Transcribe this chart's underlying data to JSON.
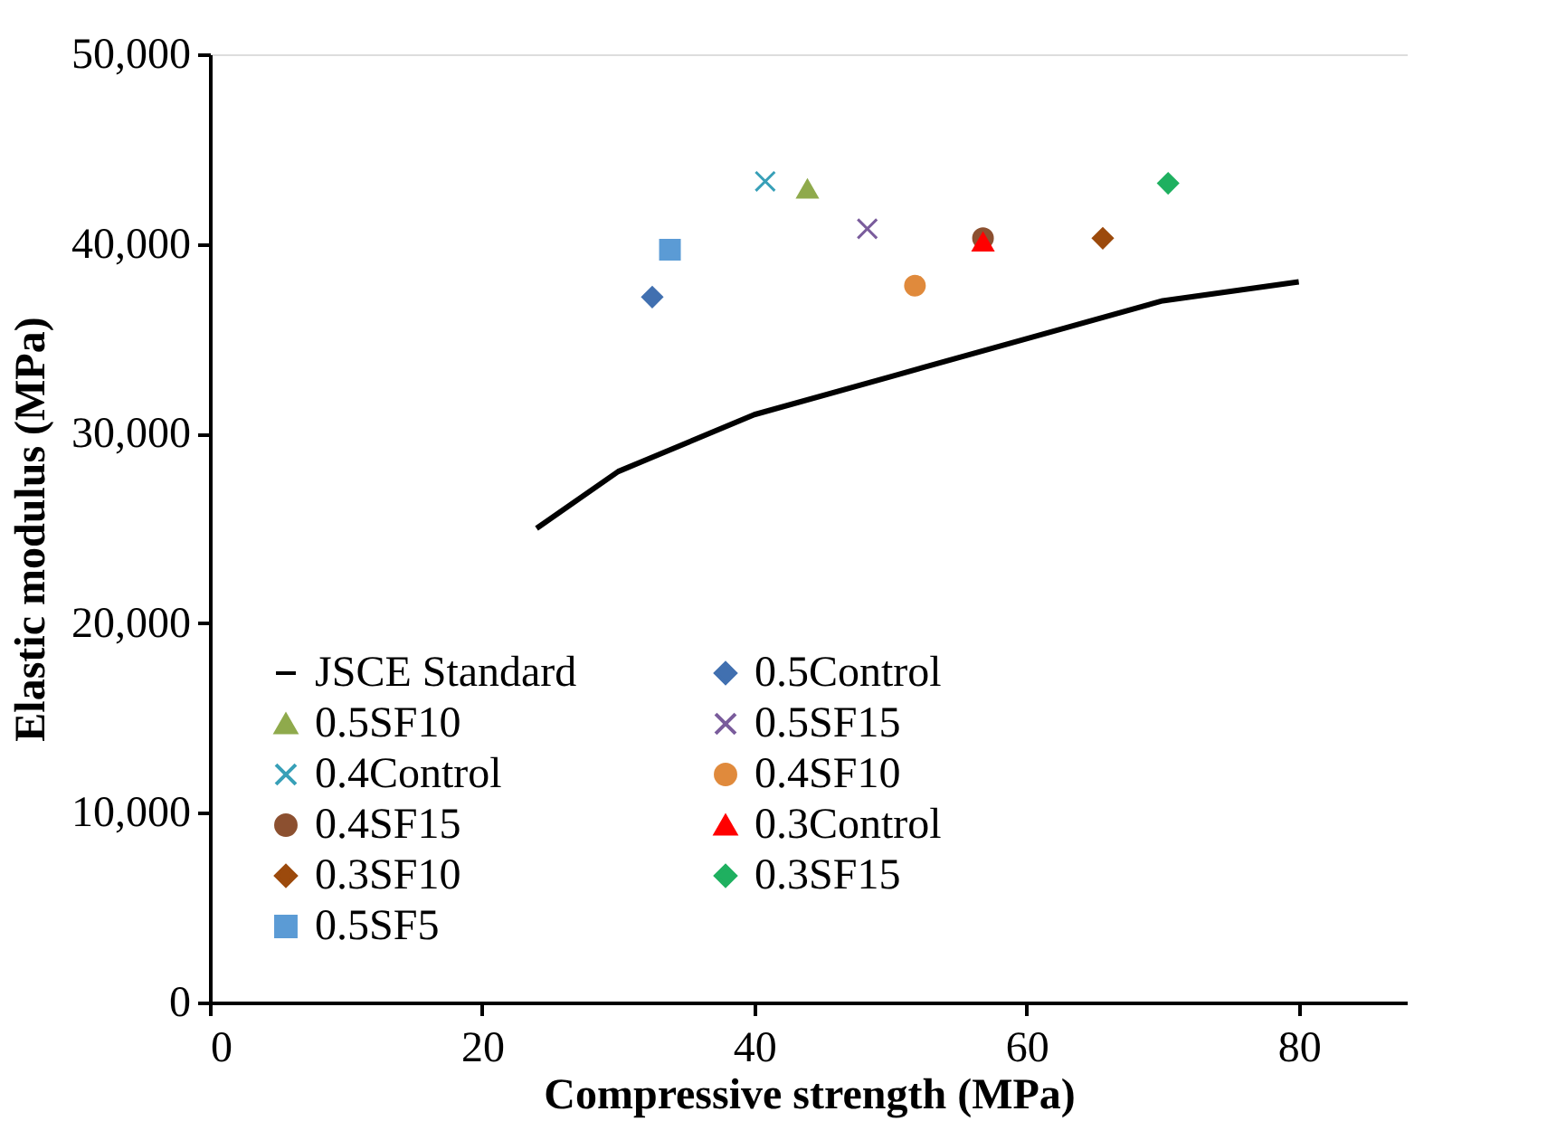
{
  "chart_data": {
    "type": "scatter",
    "xlabel": "Compressive strength (MPa)",
    "ylabel": "Elastic modulus (MPa)",
    "xlim": [
      0,
      88
    ],
    "xticks": [
      0,
      20,
      40,
      60,
      80
    ],
    "ylim": [
      0,
      50000
    ],
    "yticks": [
      {
        "value": 0,
        "label": "0"
      },
      {
        "value": 10000,
        "label": "10,000"
      },
      {
        "value": 20000,
        "label": "20,000"
      },
      {
        "value": 30000,
        "label": "30,000"
      },
      {
        "value": 40000,
        "label": "40,000"
      },
      {
        "value": 50000,
        "label": "50,000"
      }
    ],
    "grid": false,
    "legend": "bottom left",
    "series": [
      {
        "name": "JSCE Standard",
        "type": "line",
        "color": "#000000",
        "marker": "none",
        "line_style": "solid",
        "x": [
          24,
          30,
          40,
          50,
          60,
          70,
          80
        ],
        "values": [
          25000,
          28000,
          31000,
          33000,
          35000,
          37000,
          38000
        ]
      },
      {
        "name": "0.5Control",
        "color": "#4170b0",
        "marker": "diamond",
        "x": [
          32.5
        ],
        "values": [
          37200
        ]
      },
      {
        "name": "0.5SF10",
        "color": "#8faa4c",
        "marker": "triangle",
        "x": [
          43.9
        ],
        "values": [
          42900
        ]
      },
      {
        "name": "0.5SF15",
        "color": "#7a5c9c",
        "marker": "cross",
        "x": [
          48.3
        ],
        "values": [
          40800
        ]
      },
      {
        "name": "0.4Control",
        "color": "#38a0b8",
        "marker": "cross",
        "x": [
          40.8
        ],
        "values": [
          43300
        ]
      },
      {
        "name": "0.4SF10",
        "color": "#e08a3c",
        "marker": "circle",
        "x": [
          51.8
        ],
        "values": [
          37800
        ]
      },
      {
        "name": "0.4SF15",
        "color": "#8c5030",
        "marker": "circle",
        "x": [
          56.8
        ],
        "values": [
          40300
        ]
      },
      {
        "name": "0.3Control",
        "color": "#ff0000",
        "marker": "triangle",
        "x": [
          56.8
        ],
        "values": [
          40100
        ]
      },
      {
        "name": "0.3SF10",
        "color": "#9c4a0c",
        "marker": "diamond",
        "x": [
          65.6
        ],
        "values": [
          40300
        ]
      },
      {
        "name": "0.3SF15",
        "color": "#1fb060",
        "marker": "diamond",
        "x": [
          70.4
        ],
        "values": [
          43200
        ]
      },
      {
        "name": "0.5SF5",
        "color": "#5b9bd5",
        "marker": "square",
        "x": [
          33.8
        ],
        "values": [
          39700
        ]
      }
    ]
  }
}
